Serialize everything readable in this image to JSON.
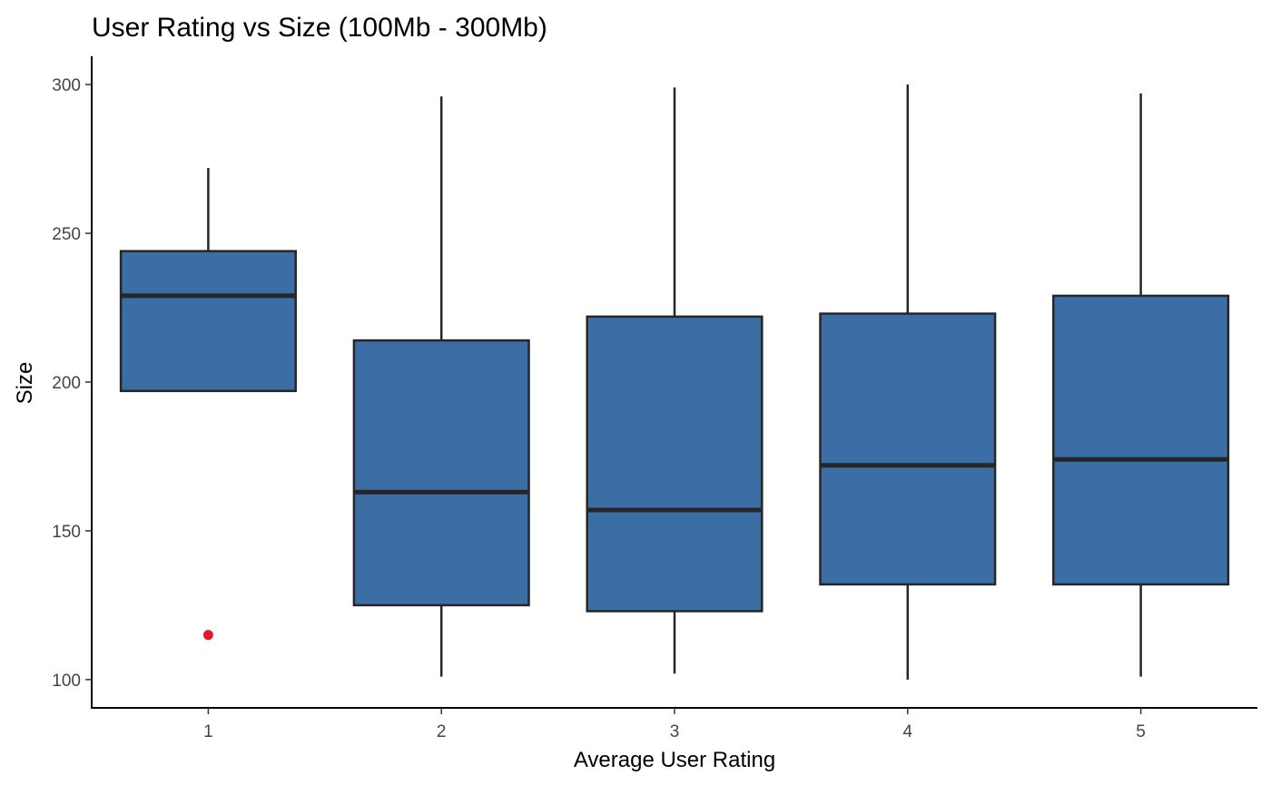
{
  "chart_data": {
    "type": "boxplot",
    "title": "User Rating vs Size (100Mb - 300Mb)",
    "xlabel": "Average User Rating",
    "ylabel": "Size",
    "categories": [
      "1",
      "2",
      "3",
      "4",
      "5"
    ],
    "boxes": [
      {
        "category": "1",
        "min": 197,
        "q1": 197,
        "median": 229,
        "q3": 244,
        "max": 272,
        "outliers": [
          115
        ]
      },
      {
        "category": "2",
        "min": 101,
        "q1": 125,
        "median": 163,
        "q3": 214,
        "max": 296,
        "outliers": []
      },
      {
        "category": "3",
        "min": 102,
        "q1": 123,
        "median": 157,
        "q3": 222,
        "max": 299,
        "outliers": []
      },
      {
        "category": "4",
        "min": 100,
        "q1": 132,
        "median": 172,
        "q3": 223,
        "max": 300,
        "outliers": []
      },
      {
        "category": "5",
        "min": 101,
        "q1": 132,
        "median": 174,
        "q3": 229,
        "max": 297,
        "outliers": []
      }
    ],
    "ylim": [
      90.5,
      309.5
    ],
    "yticks": [
      100,
      150,
      200,
      250,
      300
    ],
    "grid": false,
    "legend": "none",
    "colors": {
      "box_fill": "#3A6EA5",
      "box_stroke": "#262626",
      "outlier": "#E3182D"
    }
  }
}
